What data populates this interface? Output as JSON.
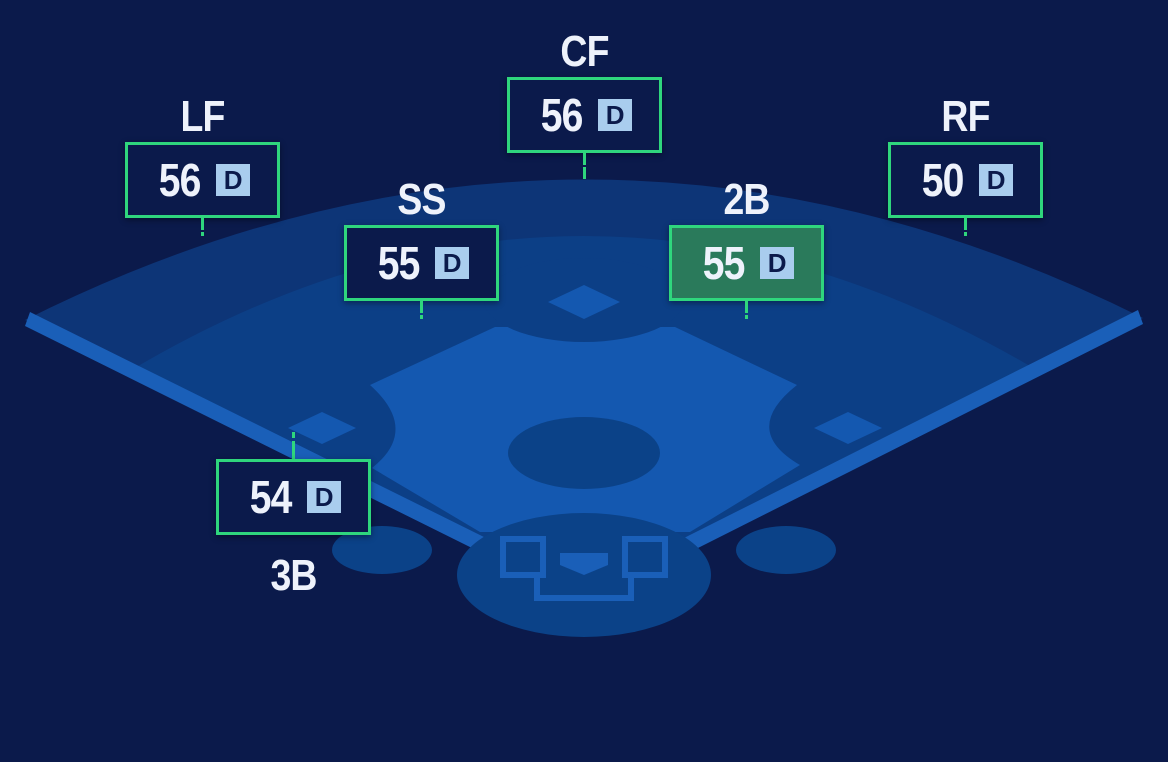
{
  "colors": {
    "background": "#0b1a4b",
    "accent": "#2fd67d",
    "selected": "#2a7a5b",
    "grade_badge": "#a9cdee"
  },
  "positions": [
    {
      "id": "lf",
      "label": "LF",
      "rating": "56",
      "grade": "D",
      "selected": false
    },
    {
      "id": "cf",
      "label": "CF",
      "rating": "56",
      "grade": "D",
      "selected": false
    },
    {
      "id": "rf",
      "label": "RF",
      "rating": "50",
      "grade": "D",
      "selected": false
    },
    {
      "id": "ss",
      "label": "SS",
      "rating": "55",
      "grade": "D",
      "selected": false
    },
    {
      "id": "2b",
      "label": "2B",
      "rating": "55",
      "grade": "D",
      "selected": true
    },
    {
      "id": "3b",
      "label": "3B",
      "rating": "54",
      "grade": "D",
      "selected": false
    }
  ]
}
